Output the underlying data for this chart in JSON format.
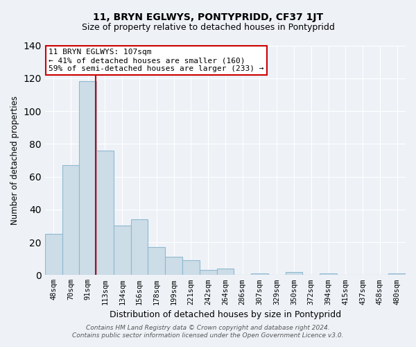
{
  "title": "11, BRYN EGLWYS, PONTYPRIDD, CF37 1JT",
  "subtitle": "Size of property relative to detached houses in Pontypridd",
  "xlabel": "Distribution of detached houses by size in Pontypridd",
  "ylabel": "Number of detached properties",
  "bar_labels": [
    "48sqm",
    "70sqm",
    "91sqm",
    "113sqm",
    "134sqm",
    "156sqm",
    "178sqm",
    "199sqm",
    "221sqm",
    "242sqm",
    "264sqm",
    "286sqm",
    "307sqm",
    "329sqm",
    "350sqm",
    "372sqm",
    "394sqm",
    "415sqm",
    "437sqm",
    "458sqm",
    "480sqm"
  ],
  "bar_values": [
    25,
    67,
    118,
    76,
    30,
    34,
    17,
    11,
    9,
    3,
    4,
    0,
    1,
    0,
    2,
    0,
    1,
    0,
    0,
    0,
    1
  ],
  "bar_color": "#ccdde8",
  "bar_edge_color": "#90b8d0",
  "highlight_line_color": "#cc0000",
  "ylim": [
    0,
    140
  ],
  "yticks": [
    0,
    20,
    40,
    60,
    80,
    100,
    120,
    140
  ],
  "annotation_title": "11 BRYN EGLWYS: 107sqm",
  "annotation_line2": "← 41% of detached houses are smaller (160)",
  "annotation_line3": "59% of semi-detached houses are larger (233) →",
  "annotation_box_color": "#ffffff",
  "annotation_box_edge": "#cc0000",
  "footer_line1": "Contains HM Land Registry data © Crown copyright and database right 2024.",
  "footer_line2": "Contains public sector information licensed under the Open Government Licence v3.0.",
  "background_color": "#eef2f7",
  "grid_color": "#ffffff",
  "title_fontsize": 10,
  "subtitle_fontsize": 9
}
